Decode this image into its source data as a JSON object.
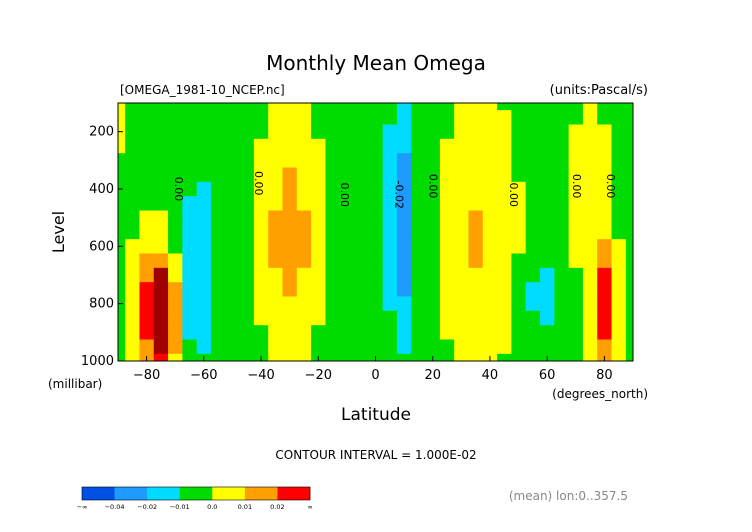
{
  "chart_data": {
    "type": "heatmap",
    "title": "Monthly Mean Omega",
    "file_label": "[OMEGA_1981-10_NCEP.nc]",
    "units_label": "(units:Pascal/s)",
    "xlabel": "Latitude",
    "x_units": "(degrees_north)",
    "ylabel": "Level",
    "y_units": "(millibar)",
    "xlim": [
      -90,
      90
    ],
    "ylim": [
      1000,
      100
    ],
    "x_ticks": [
      -80,
      -60,
      -40,
      -20,
      0,
      20,
      40,
      60,
      80
    ],
    "y_ticks": [
      200,
      400,
      600,
      800,
      1000
    ],
    "x": [
      -90,
      -85,
      -80,
      -75,
      -70,
      -65,
      -60,
      -55,
      -50,
      -45,
      -40,
      -35,
      -30,
      -25,
      -20,
      -15,
      -10,
      -5,
      0,
      5,
      10,
      15,
      20,
      25,
      30,
      35,
      40,
      45,
      50,
      55,
      60,
      65,
      70,
      75,
      80,
      85,
      90
    ],
    "y": [
      100,
      150,
      200,
      250,
      300,
      350,
      400,
      450,
      500,
      550,
      600,
      650,
      700,
      750,
      800,
      850,
      900,
      950,
      1000
    ],
    "contour_labels": [
      {
        "text": "0.00",
        "lat": -69,
        "level": 400
      },
      {
        "text": "0.00",
        "lat": -41,
        "level": 380
      },
      {
        "text": "0.00",
        "lat": -11,
        "level": 420
      },
      {
        "text": "-0.02",
        "lat": 8,
        "level": 420
      },
      {
        "text": "0.00",
        "lat": 20,
        "level": 390
      },
      {
        "text": "0.00",
        "lat": 48,
        "level": 420
      },
      {
        "text": "0.00",
        "lat": 70,
        "level": 390
      },
      {
        "text": "0.00",
        "lat": 82,
        "level": 390
      }
    ],
    "contour_interval_text": "CONTOUR INTERVAL = 1.000E-02",
    "mean_text": "(mean) lon:0..357.5",
    "colorbar": {
      "labels": [
        "-∞",
        "-0.04",
        "-0.02",
        "-0.01",
        "0.0",
        "0.01",
        "0.02",
        "∞"
      ],
      "colors": [
        "#0050e6",
        "#1e9bff",
        "#00dcff",
        "#00dc00",
        "#ffff00",
        "#ffa000",
        "#ff0000"
      ]
    },
    "legend": "bottom-left",
    "grid": false
  }
}
